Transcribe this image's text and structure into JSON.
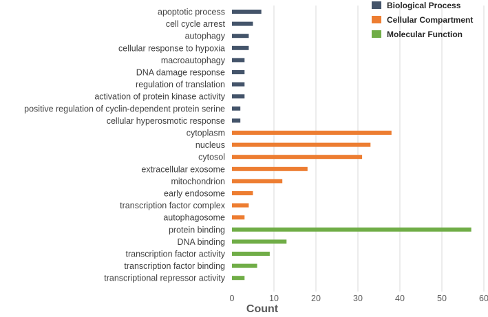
{
  "chart_data": {
    "type": "bar",
    "orientation": "horizontal",
    "title": "",
    "xlabel": "Count",
    "ylabel": "",
    "xlim": [
      0,
      60
    ],
    "xticks": [
      0,
      10,
      20,
      30,
      40,
      50,
      60
    ],
    "grid": true,
    "legend_position": "top-right",
    "series": [
      {
        "name": "Biological Process",
        "color": "#44546a",
        "categories": [
          "apoptotic process",
          "cell cycle arrest",
          "autophagy",
          "cellular response to hypoxia",
          "macroautophagy",
          "DNA damage response",
          "regulation of translation",
          "activation of protein kinase activity",
          "positive regulation of cyclin-dependent protein serine",
          "cellular hyperosmotic response"
        ],
        "values": [
          7,
          5,
          4,
          4,
          3,
          3,
          3,
          3,
          2,
          2
        ]
      },
      {
        "name": "Cellular Compartment",
        "color": "#ed7d31",
        "categories": [
          "cytoplasm",
          "nucleus",
          "cytosol",
          "extracellular exosome",
          "mitochondrion",
          "early endosome",
          "transcription factor complex",
          "autophagosome"
        ],
        "values": [
          38,
          33,
          31,
          18,
          12,
          5,
          4,
          3
        ]
      },
      {
        "name": "Molecular Function",
        "color": "#70ad47",
        "categories": [
          "protein binding",
          "DNA binding",
          "transcription factor activity",
          "transcription factor binding",
          "transcriptional repressor activity"
        ],
        "values": [
          57,
          13,
          9,
          6,
          3
        ]
      }
    ]
  }
}
